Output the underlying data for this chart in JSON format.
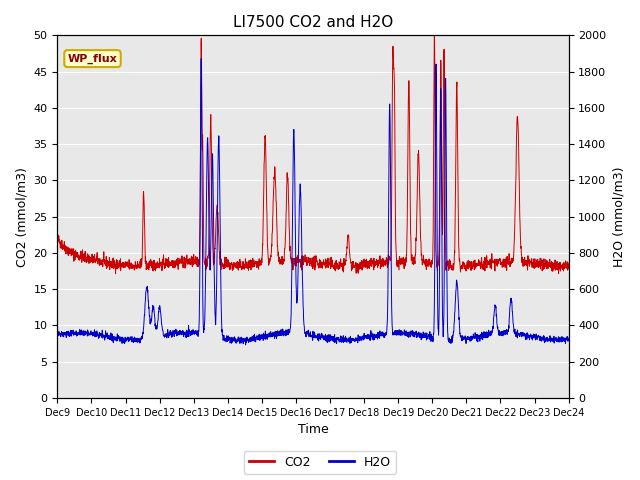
{
  "title": "LI7500 CO2 and H2O",
  "xlabel": "Time",
  "ylabel_left": "CO2 (mmol/m3)",
  "ylabel_right": "H2O (mmol/m3)",
  "ylim_left": [
    0,
    50
  ],
  "ylim_right": [
    0,
    2000
  ],
  "yticks_left": [
    0,
    5,
    10,
    15,
    20,
    25,
    30,
    35,
    40,
    45,
    50
  ],
  "yticks_right": [
    0,
    200,
    400,
    600,
    800,
    1000,
    1200,
    1400,
    1600,
    1800,
    2000
  ],
  "xtick_labels": [
    "Dec 9",
    "Dec 10",
    "Dec 11",
    "Dec 12",
    "Dec 13",
    "Dec 14",
    "Dec 15",
    "Dec 16",
    "Dec 17",
    "Dec 18",
    "Dec 19",
    "Dec 20",
    "Dec 21",
    "Dec 22",
    "Dec 23",
    "Dec 24"
  ],
  "annotation_text": "WP_flux",
  "co2_color": "#cc0000",
  "h2o_color": "#0000cc",
  "background_color": "#e8e8e8",
  "legend_co2": "CO2",
  "legend_h2o": "H2O",
  "title_fontsize": 11,
  "axis_fontsize": 9,
  "tick_fontsize": 8,
  "linewidth": 0.7
}
